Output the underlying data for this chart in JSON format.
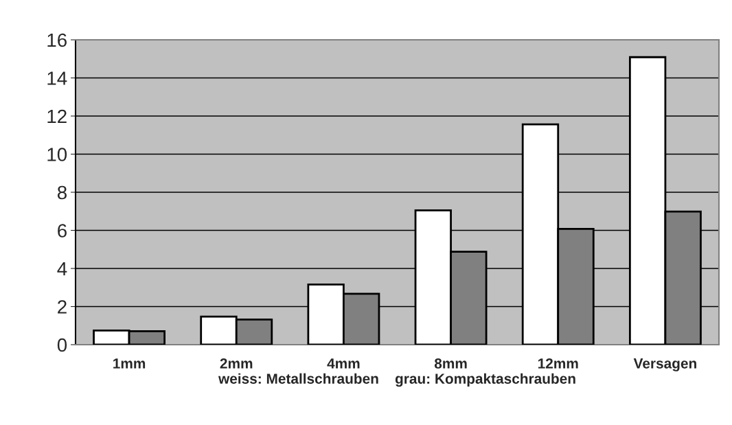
{
  "chart_data": {
    "type": "bar",
    "xlabel": "weiss: Metallschrauben    grau: Kompaktaschrauben",
    "categories": [
      "1mm",
      "2mm",
      "4mm",
      "8mm",
      "12mm",
      "Versagen"
    ],
    "series": [
      {
        "color": "#ffffff",
        "values": [
          0.74,
          1.47,
          3.16,
          7.05,
          11.56,
          15.09
        ]
      },
      {
        "color": "#808080",
        "values": [
          0.71,
          1.32,
          2.67,
          4.88,
          6.08,
          6.99
        ]
      }
    ],
    "ylim": [
      0,
      16
    ],
    "yticks": [
      0,
      2,
      4,
      6,
      8,
      10,
      12,
      14,
      16
    ],
    "grid": "y"
  }
}
